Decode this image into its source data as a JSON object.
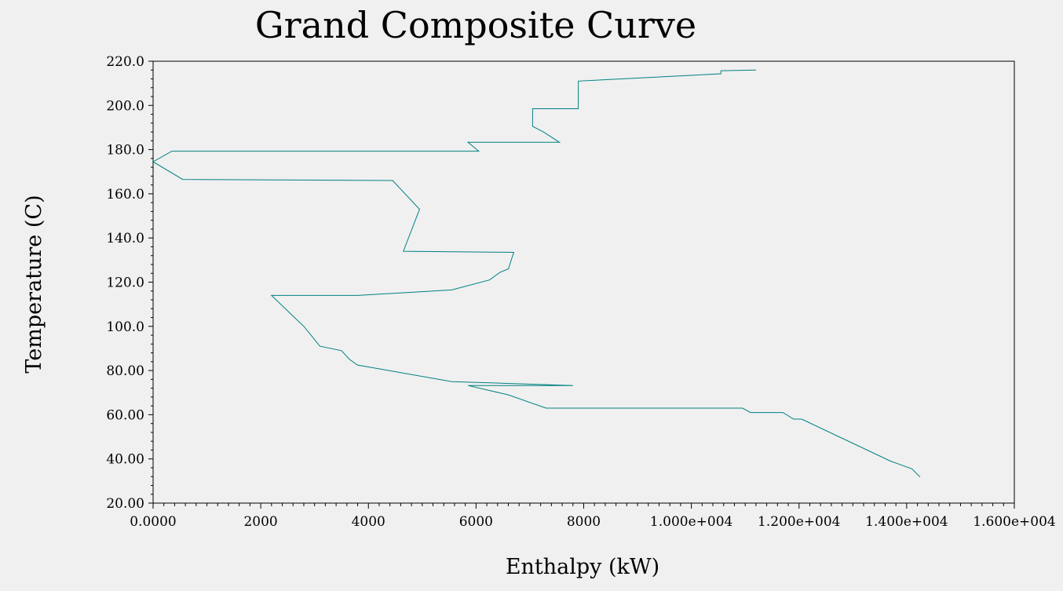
{
  "chart_data": {
    "type": "line",
    "title": "Grand Composite Curve",
    "xlabel": "Enthalpy (kW)",
    "ylabel": "Temperature (C)",
    "xlim": [
      0,
      16000
    ],
    "ylim": [
      20,
      220
    ],
    "x_tick_values": [
      0,
      2000,
      4000,
      6000,
      8000,
      10000,
      12000,
      14000,
      16000
    ],
    "x_tick_labels": [
      "0.0000",
      "2000",
      "4000",
      "6000",
      "8000",
      "1.000e+004",
      "1.200e+004",
      "1.400e+004",
      "1.600e+004"
    ],
    "y_tick_values": [
      20,
      40,
      60,
      80,
      100,
      120,
      140,
      160,
      180,
      200,
      220
    ],
    "y_tick_labels": [
      "20.00",
      "40.00",
      "60.00",
      "80.00",
      "100.0",
      "120.0",
      "140.0",
      "160.0",
      "180.0",
      "200.0",
      "220.0"
    ],
    "grid": false,
    "legend": "none",
    "colors": {
      "series": "#008080",
      "frame": "#000000",
      "background": "#f0f0f0"
    },
    "series": [
      {
        "points": [
          [
            11200,
            216
          ],
          [
            10550,
            215.7
          ],
          [
            10550,
            214.3
          ],
          [
            7900,
            211
          ],
          [
            7900,
            198.5
          ],
          [
            7050,
            198.5
          ],
          [
            7050,
            190.5
          ],
          [
            7250,
            188
          ],
          [
            7550,
            183.3
          ],
          [
            5850,
            183.3
          ],
          [
            6050,
            179.3
          ],
          [
            350,
            179.3
          ],
          [
            0,
            174.5
          ],
          [
            550,
            166.5
          ],
          [
            4450,
            166
          ],
          [
            4950,
            153
          ],
          [
            4650,
            134
          ],
          [
            6700,
            133.5
          ],
          [
            6600,
            126
          ],
          [
            6450,
            124.5
          ],
          [
            6250,
            121
          ],
          [
            5550,
            116.5
          ],
          [
            3800,
            114
          ],
          [
            2200,
            114
          ],
          [
            2800,
            100
          ],
          [
            3100,
            91
          ],
          [
            3500,
            89
          ],
          [
            3650,
            85
          ],
          [
            3800,
            82.5
          ],
          [
            5550,
            75
          ],
          [
            7800,
            73.2
          ],
          [
            5850,
            73.2
          ],
          [
            6600,
            69
          ],
          [
            7300,
            63
          ],
          [
            10950,
            63
          ],
          [
            11100,
            61
          ],
          [
            11700,
            61
          ],
          [
            11900,
            58
          ],
          [
            12050,
            58
          ],
          [
            13700,
            39
          ],
          [
            14100,
            35.5
          ],
          [
            14250,
            31.8
          ]
        ]
      }
    ]
  }
}
